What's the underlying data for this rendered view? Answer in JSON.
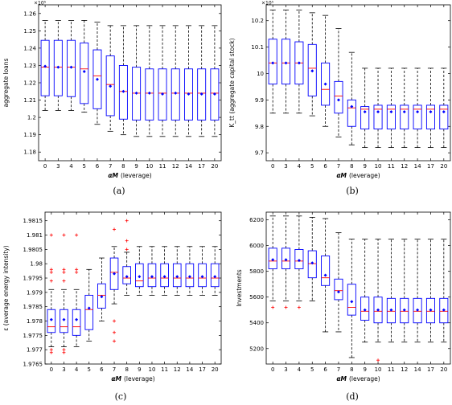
{
  "chart_data": [
    {
      "type": "box",
      "panel_label": "(a)",
      "ylabel": "aggregate loans",
      "xlabel_symbol": "αM",
      "xlabel_suffix": "(leverage)",
      "multiplier": "×10⁵",
      "categories": [
        "0",
        "3",
        "4",
        "5",
        "6",
        "7",
        "8",
        "9",
        "10",
        "11",
        "12",
        "14",
        "17",
        "20"
      ],
      "ylim": [
        1.175,
        1.265
      ],
      "yticks": [
        "1.18",
        "1.19",
        "1.2",
        "1.21",
        "1.22",
        "1.23",
        "1.24",
        "1.25",
        "1.26"
      ],
      "yticks_values": [
        1.18,
        1.19,
        1.2,
        1.21,
        1.22,
        1.23,
        1.24,
        1.25,
        1.26
      ],
      "grid": false,
      "boxes": [
        {
          "min": 1.204,
          "q1": 1.2125,
          "median": 1.229,
          "q3": 1.2445,
          "max": 1.256,
          "mean": 1.2295,
          "outliers": []
        },
        {
          "min": 1.204,
          "q1": 1.2125,
          "median": 1.229,
          "q3": 1.2445,
          "max": 1.256,
          "mean": 1.229,
          "outliers": []
        },
        {
          "min": 1.204,
          "q1": 1.212,
          "median": 1.229,
          "q3": 1.2445,
          "max": 1.256,
          "mean": 1.229,
          "outliers": []
        },
        {
          "min": 1.203,
          "q1": 1.208,
          "median": 1.228,
          "q3": 1.243,
          "max": 1.256,
          "mean": 1.2265,
          "outliers": []
        },
        {
          "min": 1.196,
          "q1": 1.205,
          "median": 1.224,
          "q3": 1.239,
          "max": 1.255,
          "mean": 1.222,
          "outliers": []
        },
        {
          "min": 1.192,
          "q1": 1.201,
          "median": 1.219,
          "q3": 1.2355,
          "max": 1.253,
          "mean": 1.218,
          "outliers": []
        },
        {
          "min": 1.19,
          "q1": 1.199,
          "median": 1.215,
          "q3": 1.23,
          "max": 1.253,
          "mean": 1.215,
          "outliers": []
        },
        {
          "min": 1.189,
          "q1": 1.1985,
          "median": 1.214,
          "q3": 1.229,
          "max": 1.253,
          "mean": 1.214,
          "outliers": []
        },
        {
          "min": 1.189,
          "q1": 1.1985,
          "median": 1.214,
          "q3": 1.228,
          "max": 1.253,
          "mean": 1.214,
          "outliers": []
        },
        {
          "min": 1.189,
          "q1": 1.1985,
          "median": 1.214,
          "q3": 1.228,
          "max": 1.253,
          "mean": 1.2135,
          "outliers": []
        },
        {
          "min": 1.189,
          "q1": 1.1985,
          "median": 1.214,
          "q3": 1.228,
          "max": 1.253,
          "mean": 1.214,
          "outliers": []
        },
        {
          "min": 1.189,
          "q1": 1.1985,
          "median": 1.214,
          "q3": 1.228,
          "max": 1.253,
          "mean": 1.2135,
          "outliers": []
        },
        {
          "min": 1.189,
          "q1": 1.1985,
          "median": 1.214,
          "q3": 1.228,
          "max": 1.253,
          "mean": 1.2135,
          "outliers": []
        },
        {
          "min": 1.189,
          "q1": 1.1985,
          "median": 1.214,
          "q3": 1.228,
          "max": 1.253,
          "mean": 1.2135,
          "outliers": []
        }
      ]
    },
    {
      "type": "box",
      "panel_label": "(b)",
      "ylabel": "K_tt (aggregate capital stock)",
      "xlabel_symbol": "αM",
      "xlabel_suffix": "(leverage)",
      "multiplier": "×10⁵",
      "categories": [
        "0",
        "3",
        "4",
        "5",
        "6",
        "7",
        "8",
        "9",
        "10",
        "11",
        "12",
        "14",
        "17",
        "20"
      ],
      "ylim": [
        9.67,
        10.26
      ],
      "yticks": [
        "9.7",
        "9.8",
        "9.9",
        "10",
        "10.1",
        "10.2"
      ],
      "yticks_values": [
        9.7,
        9.8,
        9.9,
        10.0,
        10.1,
        10.2
      ],
      "grid": false,
      "boxes": [
        {
          "min": 9.85,
          "q1": 9.96,
          "median": 10.04,
          "q3": 10.13,
          "max": 10.24,
          "mean": 10.04,
          "outliers": []
        },
        {
          "min": 9.85,
          "q1": 9.96,
          "median": 10.04,
          "q3": 10.13,
          "max": 10.24,
          "mean": 10.04,
          "outliers": []
        },
        {
          "min": 9.85,
          "q1": 9.96,
          "median": 10.04,
          "q3": 10.12,
          "max": 10.24,
          "mean": 10.04,
          "outliers": []
        },
        {
          "min": 9.84,
          "q1": 9.915,
          "median": 10.02,
          "q3": 10.11,
          "max": 10.23,
          "mean": 10.01,
          "outliers": []
        },
        {
          "min": 9.8,
          "q1": 9.88,
          "median": 9.94,
          "q3": 10.04,
          "max": 10.22,
          "mean": 9.96,
          "outliers": []
        },
        {
          "min": 9.76,
          "q1": 9.85,
          "median": 9.915,
          "q3": 9.97,
          "max": 10.17,
          "mean": 9.9,
          "outliers": []
        },
        {
          "min": 9.73,
          "q1": 9.8,
          "median": 9.87,
          "q3": 9.9,
          "max": 10.08,
          "mean": 9.875,
          "outliers": []
        },
        {
          "min": 9.72,
          "q1": 9.79,
          "median": 9.865,
          "q3": 9.875,
          "max": 10.02,
          "mean": 9.855,
          "outliers": []
        },
        {
          "min": 9.72,
          "q1": 9.79,
          "median": 9.865,
          "q3": 9.88,
          "max": 10.02,
          "mean": 9.855,
          "outliers": []
        },
        {
          "min": 9.72,
          "q1": 9.79,
          "median": 9.865,
          "q3": 9.88,
          "max": 10.02,
          "mean": 9.855,
          "outliers": []
        },
        {
          "min": 9.72,
          "q1": 9.79,
          "median": 9.865,
          "q3": 9.88,
          "max": 10.02,
          "mean": 9.855,
          "outliers": []
        },
        {
          "min": 9.72,
          "q1": 9.79,
          "median": 9.865,
          "q3": 9.88,
          "max": 10.02,
          "mean": 9.855,
          "outliers": []
        },
        {
          "min": 9.72,
          "q1": 9.79,
          "median": 9.865,
          "q3": 9.88,
          "max": 10.02,
          "mean": 9.855,
          "outliers": []
        },
        {
          "min": 9.72,
          "q1": 9.79,
          "median": 9.865,
          "q3": 9.88,
          "max": 10.02,
          "mean": 9.855,
          "outliers": []
        }
      ]
    },
    {
      "type": "box",
      "panel_label": "(c)",
      "ylabel": "ε (average energy intensity)",
      "xlabel_symbol": "αM",
      "xlabel_suffix": "(leverage)",
      "multiplier": "",
      "categories": [
        "0",
        "3",
        "4",
        "5",
        "6",
        "7",
        "8",
        "9",
        "10",
        "11",
        "12",
        "14",
        "17",
        "20"
      ],
      "ylim": [
        1.9765,
        1.9818
      ],
      "yticks": [
        "1.9765",
        "1.977",
        "1.9775",
        "1.978",
        "1.9785",
        "1.979",
        "1.9795",
        "1.98",
        "1.9805",
        "1.981",
        "1.9815"
      ],
      "yticks_values": [
        1.9765,
        1.977,
        1.9775,
        1.978,
        1.9785,
        1.979,
        1.9795,
        1.98,
        1.9805,
        1.981,
        1.9815
      ],
      "grid": false,
      "boxes": [
        {
          "min": 1.9771,
          "q1": 1.9776,
          "median": 1.9778,
          "q3": 1.9784,
          "max": 1.9791,
          "mean": 1.97805,
          "outliers": [
            1.9769,
            1.977,
            1.9794,
            1.9797,
            1.9798,
            1.981
          ]
        },
        {
          "min": 1.9771,
          "q1": 1.9776,
          "median": 1.9778,
          "q3": 1.9784,
          "max": 1.9791,
          "mean": 1.97805,
          "outliers": [
            1.9769,
            1.977,
            1.9794,
            1.9797,
            1.9798,
            1.981
          ]
        },
        {
          "min": 1.9771,
          "q1": 1.9775,
          "median": 1.9778,
          "q3": 1.9784,
          "max": 1.9791,
          "mean": 1.97805,
          "outliers": [
            1.9797,
            1.9798,
            1.981
          ]
        },
        {
          "min": 1.9773,
          "q1": 1.9777,
          "median": 1.9784,
          "q3": 1.9789,
          "max": 1.9798,
          "mean": 1.97845,
          "outliers": []
        },
        {
          "min": 1.978,
          "q1": 1.97845,
          "median": 1.9789,
          "q3": 1.9793,
          "max": 1.9802,
          "mean": 1.97885,
          "outliers": []
        },
        {
          "min": 1.9786,
          "q1": 1.9791,
          "median": 1.9797,
          "q3": 1.9802,
          "max": 1.9806,
          "mean": 1.97965,
          "outliers": [
            1.9773,
            1.9776,
            1.978,
            1.9812
          ]
        },
        {
          "min": 1.9789,
          "q1": 1.9793,
          "median": 1.9795,
          "q3": 1.9799,
          "max": 1.9804,
          "mean": 1.97955,
          "outliers": [
            1.9815,
            1.9808,
            1.9805
          ]
        },
        {
          "min": 1.9789,
          "q1": 1.9792,
          "median": 1.9794,
          "q3": 1.98,
          "max": 1.9806,
          "mean": 1.97955,
          "outliers": []
        },
        {
          "min": 1.9789,
          "q1": 1.9792,
          "median": 1.9795,
          "q3": 1.98,
          "max": 1.9806,
          "mean": 1.97955,
          "outliers": []
        },
        {
          "min": 1.9789,
          "q1": 1.9792,
          "median": 1.9795,
          "q3": 1.98,
          "max": 1.9806,
          "mean": 1.97955,
          "outliers": []
        },
        {
          "min": 1.9789,
          "q1": 1.9792,
          "median": 1.9795,
          "q3": 1.98,
          "max": 1.9806,
          "mean": 1.97955,
          "outliers": []
        },
        {
          "min": 1.9789,
          "q1": 1.9792,
          "median": 1.9795,
          "q3": 1.98,
          "max": 1.9806,
          "mean": 1.97955,
          "outliers": []
        },
        {
          "min": 1.9789,
          "q1": 1.9792,
          "median": 1.9795,
          "q3": 1.98,
          "max": 1.9806,
          "mean": 1.97955,
          "outliers": []
        },
        {
          "min": 1.9789,
          "q1": 1.9792,
          "median": 1.9795,
          "q3": 1.98,
          "max": 1.9806,
          "mean": 1.97955,
          "outliers": []
        }
      ]
    },
    {
      "type": "box",
      "panel_label": "(d)",
      "ylabel": "Investments",
      "xlabel_symbol": "αM",
      "xlabel_suffix": "(leverage)",
      "multiplier": "",
      "categories": [
        "0",
        "3",
        "4",
        "5",
        "6",
        "7",
        "8",
        "9",
        "10",
        "11",
        "12",
        "14",
        "17",
        "20"
      ],
      "ylim": [
        5080,
        6260
      ],
      "yticks": [
        "5200",
        "5400",
        "5600",
        "5800",
        "6000",
        "6200"
      ],
      "yticks_values": [
        5200,
        5400,
        5600,
        5800,
        6000,
        6200
      ],
      "grid": false,
      "boxes": [
        {
          "min": 5570,
          "q1": 5820,
          "median": 5880,
          "q3": 5980,
          "max": 6230,
          "mean": 5890,
          "outliers": [
            5520
          ]
        },
        {
          "min": 5570,
          "q1": 5820,
          "median": 5880,
          "q3": 5980,
          "max": 6230,
          "mean": 5890,
          "outliers": [
            5520
          ]
        },
        {
          "min": 5570,
          "q1": 5820,
          "median": 5880,
          "q3": 5970,
          "max": 6230,
          "mean": 5885,
          "outliers": [
            5520
          ]
        },
        {
          "min": 5570,
          "q1": 5750,
          "median": 5860,
          "q3": 5960,
          "max": 6220,
          "mean": 5865,
          "outliers": []
        },
        {
          "min": 5330,
          "q1": 5690,
          "median": 5750,
          "q3": 5920,
          "max": 6210,
          "mean": 5770,
          "outliers": []
        },
        {
          "min": 5330,
          "q1": 5580,
          "median": 5650,
          "q3": 5740,
          "max": 6100,
          "mean": 5640,
          "outliers": []
        },
        {
          "min": 5130,
          "q1": 5460,
          "median": 5520,
          "q3": 5700,
          "max": 6050,
          "mean": 5565,
          "outliers": []
        },
        {
          "min": 5250,
          "q1": 5420,
          "median": 5490,
          "q3": 5600,
          "max": 6050,
          "mean": 5500,
          "outliers": []
        },
        {
          "min": 5250,
          "q1": 5400,
          "median": 5490,
          "q3": 5600,
          "max": 6050,
          "mean": 5500,
          "outliers": [
            5110
          ]
        },
        {
          "min": 5250,
          "q1": 5400,
          "median": 5490,
          "q3": 5590,
          "max": 6050,
          "mean": 5500,
          "outliers": []
        },
        {
          "min": 5250,
          "q1": 5400,
          "median": 5490,
          "q3": 5590,
          "max": 6050,
          "mean": 5500,
          "outliers": []
        },
        {
          "min": 5250,
          "q1": 5400,
          "median": 5490,
          "q3": 5590,
          "max": 6050,
          "mean": 5500,
          "outliers": []
        },
        {
          "min": 5250,
          "q1": 5400,
          "median": 5490,
          "q3": 5590,
          "max": 6050,
          "mean": 5500,
          "outliers": []
        },
        {
          "min": 5250,
          "q1": 5400,
          "median": 5490,
          "q3": 5590,
          "max": 6050,
          "mean": 5500,
          "outliers": []
        }
      ]
    }
  ],
  "colors": {
    "box": "#0000ff",
    "median": "#ff0000",
    "mean": "#0000ff",
    "whisker": "#000000",
    "outlier": "#ff0000",
    "axes": "#000000"
  }
}
